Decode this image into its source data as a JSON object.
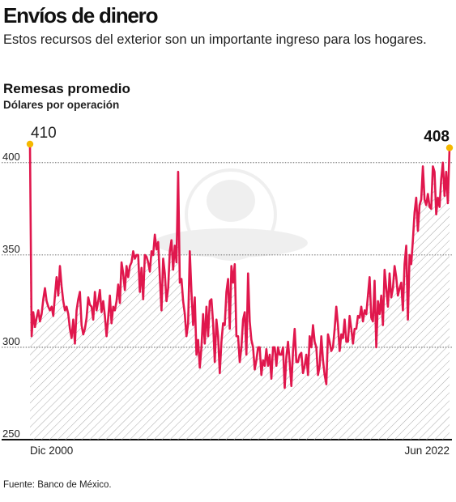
{
  "header": {
    "title": "Envíos de dinero",
    "subtitle": "Estos recursos del exterior son un importante ingreso para los hogares."
  },
  "chart": {
    "title": "Remesas promedio",
    "subtitle": "Dólares por operación"
  },
  "footer": {
    "source": "Fuente: Banco de México."
  },
  "colors": {
    "line": "#e0174d",
    "marker": "#f5b800",
    "grid": "#444444",
    "hatch": "#aaaaaa"
  },
  "chart_data": {
    "type": "line",
    "title": "Remesas promedio",
    "ylabel": "Dólares por operación",
    "ylim": [
      250,
      410
    ],
    "yticks": [
      250,
      300,
      350,
      400
    ],
    "x_range": [
      "Dic 2000",
      "Jun 2022"
    ],
    "x_tick_labels": [
      "Dic 2000",
      "Jun 2022"
    ],
    "annotations": [
      {
        "label": "410",
        "value": 410,
        "at": "Dic 2000"
      },
      {
        "label": "408",
        "value": 408,
        "at": "Jun 2022"
      }
    ],
    "series": [
      {
        "values": [
          410,
          306,
          319,
          311,
          316,
          320,
          314,
          318,
          326,
          332,
          325,
          322,
          320,
          322,
          317,
          328,
          338,
          328,
          344,
          333,
          325,
          320,
          322,
          318,
          310,
          305,
          315,
          302,
          320,
          326,
          330,
          312,
          307,
          310,
          316,
          327,
          323,
          322,
          315,
          330,
          320,
          325,
          331,
          319,
          325,
          317,
          306,
          316,
          328,
          313,
          322,
          320,
          325,
          334,
          324,
          346,
          340,
          331,
          344,
          338,
          344,
          346,
          352,
          348,
          350,
          350,
          330,
          343,
          326,
          350,
          349,
          346,
          341,
          352,
          350,
          361,
          353,
          357,
          338,
          320,
          348,
          340,
          325,
          332,
          352,
          358,
          342,
          355,
          346,
          395,
          335,
          337,
          325,
          318,
          306,
          313,
          352,
          330,
          312,
          327,
          296,
          304,
          289,
          300,
          318,
          302,
          322,
          306,
          325,
          326,
          313,
          292,
          315,
          306,
          286,
          303,
          313,
          312,
          330,
          337,
          310,
          344,
          335,
          345,
          306,
          306,
          292,
          300,
          315,
          319,
          296,
          340,
          314,
          304,
          300,
          288,
          293,
          300,
          300,
          285,
          293,
          290,
          299,
          290,
          296,
          283,
          300,
          300,
          290,
          300,
          296,
          296,
          300,
          278,
          295,
          303,
          292,
          279,
          298,
          310,
          292,
          292,
          296,
          297,
          286,
          290,
          296,
          285,
          306,
          300,
          312,
          303,
          300,
          285,
          290,
          306,
          293,
          285,
          280,
          307,
          303,
          298,
          300,
          310,
          322,
          312,
          298,
          307,
          305,
          315,
          303,
          303,
          317,
          310,
          302,
          310,
          310,
          317,
          316,
          322,
          314,
          320,
          318,
          328,
          338,
          316,
          314,
          336,
          300,
          325,
          318,
          328,
          312,
          342,
          332,
          322,
          340,
          327,
          332,
          344,
          338,
          328,
          332,
          335,
          320,
          345,
          355,
          315,
          350,
          345,
          358,
          373,
          381,
          363,
          377,
          380,
          398,
          380,
          377,
          383,
          376,
          375,
          398,
          395,
          372,
          381,
          376,
          391,
          400,
          382,
          395,
          378,
          408
        ]
      }
    ]
  }
}
